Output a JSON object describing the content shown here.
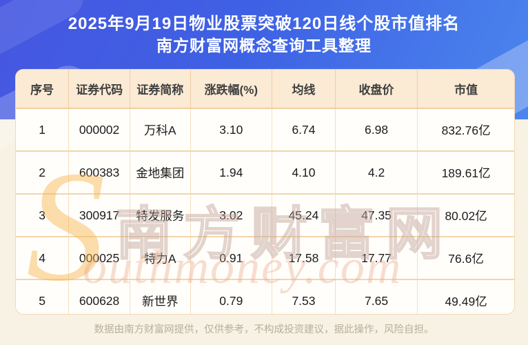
{
  "title": {
    "line1": "2025年9月19日物业股票突破120日线个股市值排名",
    "line2": "南方财富网概念查询工具整理"
  },
  "chart_data": {
    "type": "table",
    "title": "2025年9月19日物业股票突破120日线个股市值排名",
    "subtitle": "南方财富网概念查询工具整理",
    "columns": [
      "序号",
      "证券代码",
      "证券简称",
      "涨跌幅(%)",
      "均线",
      "收盘价",
      "市值"
    ],
    "rows": [
      [
        "1",
        "000002",
        "万科A",
        "3.10",
        "6.74",
        "6.98",
        "832.76亿"
      ],
      [
        "2",
        "600383",
        "金地集团",
        "1.94",
        "4.10",
        "4.2",
        "189.61亿"
      ],
      [
        "3",
        "300917",
        "特发服务",
        "3.02",
        "45.24",
        "47.35",
        "80.02亿"
      ],
      [
        "4",
        "000025",
        "特力A",
        "0.91",
        "17.58",
        "17.77",
        "76.6亿"
      ],
      [
        "5",
        "600628",
        "新世界",
        "0.79",
        "7.53",
        "7.65",
        "49.49亿"
      ]
    ]
  },
  "watermark": {
    "swoosh": "S",
    "cn": "南方财富网",
    "en": "outhmoney.com"
  },
  "footer": {
    "disclaimer": "数据由南方财富网提供，仅供参考，不构成投资建议，据此操作，风险自担。"
  },
  "colors": {
    "header_blue_start": "#4656e0",
    "header_blue_end": "#4b86ee",
    "table_header_bg": "#fbead4",
    "table_border_orange": "#f2cf9f",
    "page_cream_bg": "#f8f2e4",
    "watermark_yellow": "#f6b446",
    "footer_text": "#b9ae9d"
  }
}
